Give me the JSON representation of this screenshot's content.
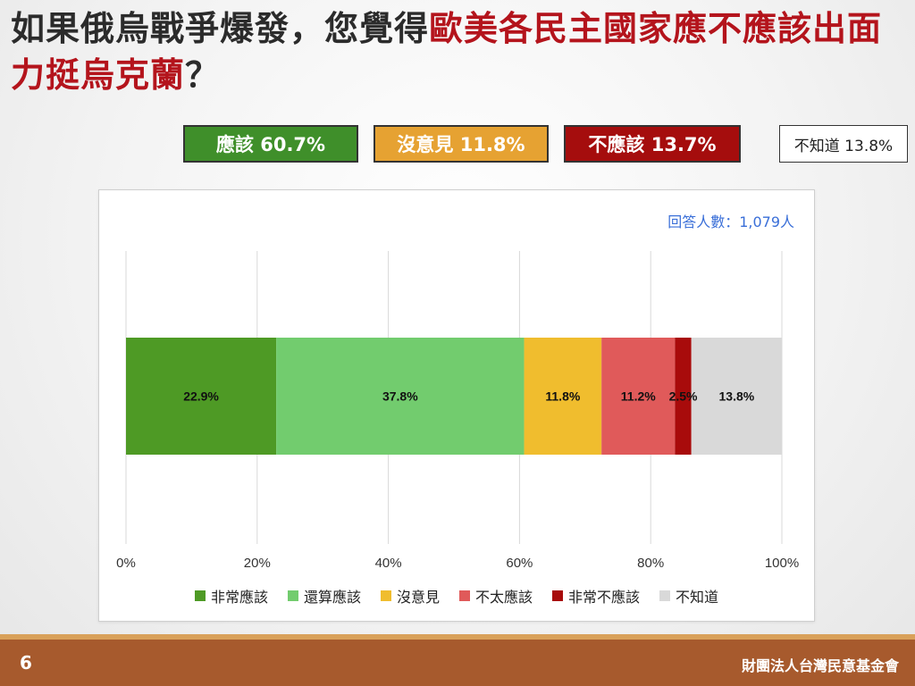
{
  "title": {
    "part1": "如果俄烏戰爭爆發，您覺得",
    "highlight": "歐美各民主國家應不應該出面力挺烏克蘭",
    "part2": "？"
  },
  "summary": [
    {
      "label": "應該 60.7%",
      "bg": "#3f8f2a",
      "fg": "#ffffff"
    },
    {
      "label": "沒意見 11.8%",
      "bg": "#e6a232",
      "fg": "#ffffff"
    },
    {
      "label": "不應該 13.7%",
      "bg": "#a50d0d",
      "fg": "#ffffff"
    },
    {
      "label": "不知道 13.8%",
      "bg": "#ffffff",
      "fg": "#222222"
    }
  ],
  "respondents": "回答人數：1,079人",
  "chart_data": {
    "type": "bar",
    "orientation": "horizontal-stacked",
    "xlim": [
      0,
      100
    ],
    "xticks": [
      "0%",
      "20%",
      "40%",
      "60%",
      "80%",
      "100%"
    ],
    "grid": true,
    "legend_position": "bottom",
    "series": [
      {
        "name": "非常應該",
        "value": 22.9,
        "label": "22.9%",
        "color": "#4e9a25"
      },
      {
        "name": "還算應該",
        "value": 37.8,
        "label": "37.8%",
        "color": "#72cc6e"
      },
      {
        "name": "沒意見",
        "value": 11.8,
        "label": "11.8%",
        "color": "#f0bd2e"
      },
      {
        "name": "不太應該",
        "value": 11.2,
        "label": "11.2%",
        "color": "#e05a5a"
      },
      {
        "name": "非常不應該",
        "value": 2.5,
        "label": "2.5%",
        "color": "#a80b0b"
      },
      {
        "name": "不知道",
        "value": 13.8,
        "label": "13.8%",
        "color": "#d9d9d9"
      }
    ]
  },
  "footer": {
    "page": "6",
    "org": "財團法人台灣民意基金會"
  }
}
